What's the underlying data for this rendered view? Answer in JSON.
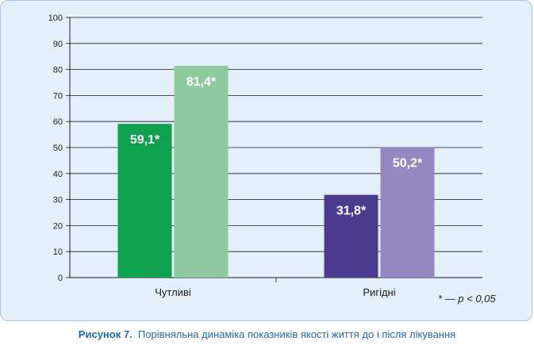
{
  "chart_data": {
    "type": "bar",
    "categories": [
      "Чутливі",
      "Ригідні"
    ],
    "bars": [
      [
        {
          "value": 59.1,
          "label": "59,1*",
          "color": "#0fa14f"
        },
        {
          "value": 81.4,
          "label": "81,4*",
          "color": "#8fca9e"
        }
      ],
      [
        {
          "value": 31.8,
          "label": "31,8*",
          "color": "#4b3c8f"
        },
        {
          "value": 50.2,
          "label": "50,2*",
          "color": "#9587c2"
        }
      ]
    ],
    "ylim": [
      0,
      100
    ],
    "yticks": [
      "0",
      "10",
      "20",
      "30",
      "40",
      "50",
      "60",
      "70",
      "80",
      "90",
      "100"
    ],
    "grid": true,
    "note": "* — p < 0,05"
  },
  "caption": {
    "label": "Рисунок 7.",
    "text": "Порівняльна динаміка показників якості життя до і після лікування"
  },
  "colors": {
    "panel_bg": "#e3eff9",
    "caption": "#1f6aa8"
  }
}
